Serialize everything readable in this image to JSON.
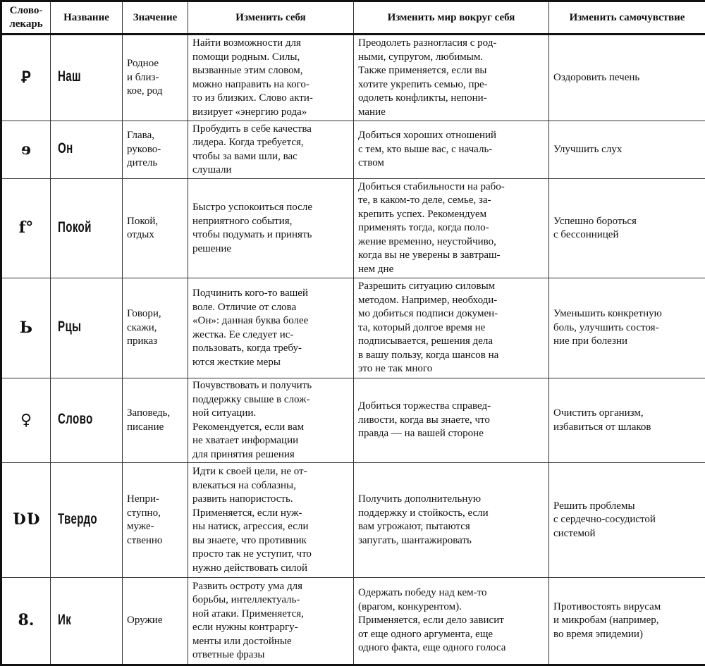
{
  "headers": [
    "Слово-\nлекарь",
    "Название",
    "Значение",
    "Изменить себя",
    "Изменить мир вокруг себя",
    "Изменить самочувствие"
  ],
  "rows": [
    {
      "glyph": "Ꝑ",
      "name": "Наш",
      "meaning": "Родное\nи близ-\nкое, род",
      "self": "Найти возможности для\nпомощи родным. Силы,\nвызванные этим словом,\nможно направить на кого-\nто из близких. Слово акти-\nвизирует «энергию рода»",
      "world": "Преодолеть разногласия с род-\nными, супругом, любимым.\nТакже применяется, если вы\nхотите укрепить семью, пре-\nодолеть конфликты, непони-\nмание",
      "health": "Оздоровить печень"
    },
    {
      "glyph": "ɘ",
      "name": "Он",
      "meaning": "Глава,\nруково-\nдитель",
      "self": "Пробудить в себе качества\nлидера. Когда требуется,\nчтобы за вами шли, вас\nслушали",
      "world": "Добиться хороших отношений\nс тем, кто выше вас, с началь-\nством",
      "health": "Улучшить слух"
    },
    {
      "glyph": "f°",
      "name": "Покой",
      "meaning": "Покой,\nотдых",
      "self": "Быстро успокоиться после\nнеприятного события,\nчтобы подумать и принять\nрешение",
      "world": "Добиться стабильности на рабо-\nте, в каком-то деле, семье, за-\nкрепить успех. Рекомендуем\nприменять тогда, когда поло-\nжение временно, неустойчиво,\nкогда вы не уверены в завтраш-\nнем дне",
      "health": "Успешно бороться\nс бессонницей"
    },
    {
      "glyph": "Ь",
      "name": "Рцы",
      "meaning": "Говори,\nскажи,\nприказ",
      "self": "Подчинить кого-то вашей\nволе. Отличие от слова\n«Он»: данная буква более\nжестка. Ее следует ис-\nпользовать, когда требу-\nются жесткие меры",
      "world": "Разрешить ситуацию силовым\nметодом. Например, необходи-\nмо добиться подписи докумен-\nта, который долгое время не\nподписывается, решения дела\nв вашу пользу, когда шансов на\nэто не так много",
      "health": "Уменьшить конкретную\nболь, улучшить состоя-\nние при болезни"
    },
    {
      "glyph": "♀",
      "name": "Слово",
      "meaning": "Заповедь,\nписание",
      "self": "Почувствовать и получить\nподдержку свыше в слож-\nной ситуации.\nРекомендуется, если вам\nне хватает информации\nдля принятия решения",
      "world": "Добиться торжества справед-\nливости, когда вы знаете, что\nправда — на вашей стороне",
      "health": "Очистить организм,\nизбавиться от шлаков"
    },
    {
      "glyph": "ƲƲ",
      "name": "Твердо",
      "meaning": "Непри-\nступно,\nмуже-\nственно",
      "self": "Идти к своей цели, не от-\nвлекаться на соблазны,\nразвить напористость.\nПрименяется, если нуж-\nны натиск, агрессия, если\nвы знаете, что противник\nпросто так не уступит, что\nнужно действовать силой",
      "world": "Получить дополнительную\nподдержку и стойкость, если\nвам угрожают, пытаются\nзапугать, шантажировать",
      "health": "Решить проблемы\nс сердечно-сосудистой\nсистемой"
    },
    {
      "glyph": "8.",
      "name": "Ик",
      "meaning": "Оружие",
      "self": "Развить остроту ума для\nборьбы, интеллектуаль-\nной атаки. Применяется,\nесли нужны контраргу-\nменты или достойные\nответные фразы",
      "world": "Одержать победу над кем-то\n(врагом, конкурентом).\nПрименяется, если дело зависит\nот еще одного аргумента, еще\nодного факта, еще одного голоса",
      "health": "Противостоять вирусам\nи микробам (например,\nво время эпидемии)"
    }
  ]
}
